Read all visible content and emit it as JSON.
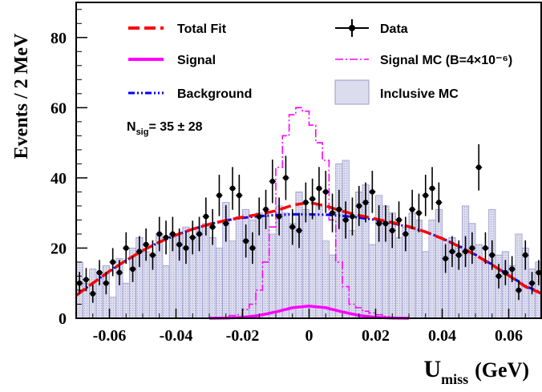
{
  "chart_data": {
    "type": "histogram-fit",
    "xlabel": "U",
    "xlabel_sub": "miss",
    "xlabel_unit": "(GeV)",
    "ylabel": "Events / 2 MeV",
    "xlim": [
      -0.07,
      0.07
    ],
    "ylim": [
      0,
      90
    ],
    "xticks": [
      -0.06,
      -0.04,
      -0.02,
      0,
      0.02,
      0.04,
      0.06
    ],
    "xtick_labels": [
      "-0.06",
      "-0.04",
      "-0.02",
      "0",
      "0.02",
      "0.04",
      "0.06"
    ],
    "yticks": [
      0,
      20,
      40,
      60,
      80
    ],
    "ytick_labels": [
      "0",
      "20",
      "40",
      "60",
      "80"
    ],
    "colors": {
      "total_fit": "#ff0000",
      "signal": "#ff00ff",
      "background": "#0000ff",
      "data": "#000000",
      "signal_mc": "#ff00ff",
      "inclusive_mc_line": "#9999cc",
      "inclusive_mc_fill": "#dcdcef"
    },
    "legend": {
      "placement": "top",
      "items": [
        {
          "key": "total_fit",
          "label": "Total Fit"
        },
        {
          "key": "data",
          "label": "Data"
        },
        {
          "key": "signal",
          "label": "Signal"
        },
        {
          "key": "signal_mc",
          "label": "Signal MC (B=4×10⁻⁶)"
        },
        {
          "key": "background",
          "label": "Background"
        },
        {
          "key": "inclusive_mc",
          "label": "Inclusive MC"
        }
      ]
    },
    "annotation": {
      "label": "N",
      "sub": "sig",
      "text": "= 35 ± 28"
    },
    "data_points": {
      "x": [
        -0.069,
        -0.067,
        -0.065,
        -0.063,
        -0.061,
        -0.059,
        -0.057,
        -0.055,
        -0.053,
        -0.051,
        -0.049,
        -0.047,
        -0.045,
        -0.043,
        -0.041,
        -0.039,
        -0.037,
        -0.035,
        -0.033,
        -0.031,
        -0.029,
        -0.027,
        -0.025,
        -0.023,
        -0.021,
        -0.019,
        -0.017,
        -0.015,
        -0.013,
        -0.011,
        -0.009,
        -0.007,
        -0.005,
        -0.003,
        -0.001,
        0.001,
        0.003,
        0.005,
        0.007,
        0.009,
        0.011,
        0.013,
        0.015,
        0.017,
        0.019,
        0.021,
        0.023,
        0.025,
        0.027,
        0.029,
        0.031,
        0.033,
        0.035,
        0.037,
        0.039,
        0.041,
        0.043,
        0.045,
        0.047,
        0.049,
        0.051,
        0.053,
        0.055,
        0.057,
        0.059,
        0.061,
        0.063,
        0.065,
        0.067,
        0.069
      ],
      "y": [
        10,
        11,
        7,
        13,
        10,
        16,
        13,
        20,
        14,
        19,
        21,
        18,
        24,
        23,
        24,
        21,
        20,
        23,
        24,
        29,
        26,
        35,
        27,
        37,
        35,
        22,
        20,
        29,
        31,
        39,
        29,
        40,
        26,
        25,
        33,
        34,
        37,
        36,
        30,
        31,
        28,
        29,
        32,
        33,
        36,
        27,
        27,
        25,
        28,
        24,
        31,
        30,
        35,
        37,
        33,
        17,
        19,
        18,
        19,
        20,
        43,
        20,
        18,
        12,
        13,
        14,
        8,
        18,
        10,
        13
      ],
      "yerr": [
        3.2,
        3.3,
        2.6,
        3.6,
        3.2,
        4.0,
        3.6,
        4.5,
        3.7,
        4.4,
        4.6,
        4.2,
        4.9,
        4.8,
        4.9,
        4.6,
        4.5,
        4.8,
        4.9,
        5.4,
        5.1,
        5.9,
        5.2,
        6.1,
        5.9,
        4.7,
        4.5,
        5.4,
        5.6,
        6.2,
        5.4,
        6.3,
        5.1,
        5.0,
        5.7,
        5.8,
        6.1,
        6.0,
        5.5,
        5.6,
        5.3,
        5.4,
        5.7,
        5.7,
        6.0,
        5.2,
        5.2,
        5.0,
        5.3,
        4.9,
        5.6,
        5.5,
        5.9,
        6.1,
        5.7,
        4.1,
        4.4,
        4.2,
        4.4,
        4.5,
        6.6,
        4.5,
        4.2,
        3.5,
        3.6,
        3.7,
        2.8,
        4.2,
        3.2,
        3.6
      ]
    },
    "inclusive_mc": {
      "x": [
        -0.069,
        -0.067,
        -0.065,
        -0.063,
        -0.061,
        -0.059,
        -0.057,
        -0.055,
        -0.053,
        -0.051,
        -0.049,
        -0.047,
        -0.045,
        -0.043,
        -0.041,
        -0.039,
        -0.037,
        -0.035,
        -0.033,
        -0.031,
        -0.029,
        -0.027,
        -0.025,
        -0.023,
        -0.021,
        -0.019,
        -0.017,
        -0.015,
        -0.013,
        -0.011,
        -0.009,
        -0.007,
        -0.005,
        -0.003,
        -0.001,
        0.001,
        0.003,
        0.005,
        0.007,
        0.009,
        0.011,
        0.013,
        0.015,
        0.017,
        0.019,
        0.021,
        0.023,
        0.025,
        0.027,
        0.029,
        0.031,
        0.033,
        0.035,
        0.037,
        0.039,
        0.041,
        0.043,
        0.045,
        0.047,
        0.049,
        0.051,
        0.053,
        0.055,
        0.057,
        0.059,
        0.061,
        0.063,
        0.065,
        0.067,
        0.069
      ],
      "y": [
        16,
        10,
        14,
        13,
        15,
        6,
        17,
        10,
        20,
        23,
        19,
        18,
        24,
        15,
        24,
        24,
        26,
        22,
        26,
        27,
        23,
        20,
        33,
        22,
        29,
        31,
        28,
        30,
        29,
        24,
        32,
        30,
        27,
        36,
        31,
        29,
        32,
        22,
        18,
        44,
        45,
        25,
        36,
        38,
        21,
        35,
        32,
        30,
        23,
        26,
        30,
        28,
        19,
        28,
        31,
        22,
        23,
        20,
        32,
        27,
        21,
        16,
        31,
        18,
        19,
        15,
        24,
        20,
        14,
        16
      ]
    },
    "signal_mc": {
      "x": [
        -0.027,
        -0.025,
        -0.023,
        -0.021,
        -0.019,
        -0.017,
        -0.015,
        -0.013,
        -0.011,
        -0.009,
        -0.007,
        -0.005,
        -0.003,
        -0.001,
        0.001,
        0.003,
        0.005,
        0.007,
        0.009,
        0.011,
        0.013,
        0.015,
        0.017,
        0.019,
        0.021,
        0.023,
        0.025,
        0.027
      ],
      "y": [
        0,
        0.3,
        0.8,
        1.0,
        2.5,
        4.0,
        8.0,
        16.0,
        26.0,
        43.0,
        52.0,
        58.0,
        60.0,
        59.0,
        55.0,
        50.0,
        45.0,
        28.0,
        16.0,
        9.0,
        4.0,
        3.0,
        2.0,
        1.5,
        1.0,
        0.5,
        0.3,
        0
      ]
    },
    "fit": {
      "total_fit_points": [
        [
          -0.07,
          6.5
        ],
        [
          -0.065,
          10.0
        ],
        [
          -0.06,
          13.4
        ],
        [
          -0.055,
          16.5
        ],
        [
          -0.05,
          19.3
        ],
        [
          -0.045,
          21.7
        ],
        [
          -0.04,
          23.7
        ],
        [
          -0.035,
          25.4
        ],
        [
          -0.03,
          26.8
        ],
        [
          -0.025,
          27.9
        ],
        [
          -0.02,
          28.8
        ],
        [
          -0.015,
          29.6
        ],
        [
          -0.01,
          30.6
        ],
        [
          -0.005,
          32.2
        ],
        [
          0.0,
          33.0
        ],
        [
          0.005,
          32.0
        ],
        [
          0.01,
          30.5
        ],
        [
          0.015,
          29.3
        ],
        [
          0.02,
          28.3
        ],
        [
          0.025,
          27.3
        ],
        [
          0.03,
          26.1
        ],
        [
          0.035,
          24.6
        ],
        [
          0.04,
          22.7
        ],
        [
          0.045,
          20.5
        ],
        [
          0.05,
          18.0
        ],
        [
          0.055,
          15.2
        ],
        [
          0.06,
          12.2
        ],
        [
          0.065,
          9.0
        ],
        [
          0.07,
          7.0
        ]
      ],
      "signal_points": [
        [
          -0.03,
          0.0
        ],
        [
          -0.025,
          0.05
        ],
        [
          -0.02,
          0.25
        ],
        [
          -0.015,
          0.8
        ],
        [
          -0.01,
          1.8
        ],
        [
          -0.005,
          3.0
        ],
        [
          0.0,
          3.5
        ],
        [
          0.005,
          3.0
        ],
        [
          0.01,
          1.8
        ],
        [
          0.015,
          0.8
        ],
        [
          0.02,
          0.25
        ],
        [
          0.025,
          0.05
        ],
        [
          0.03,
          0.0
        ]
      ],
      "background_points": [
        [
          -0.07,
          6.5
        ],
        [
          -0.065,
          10.0
        ],
        [
          -0.06,
          13.4
        ],
        [
          -0.055,
          16.5
        ],
        [
          -0.05,
          19.3
        ],
        [
          -0.045,
          21.7
        ],
        [
          -0.04,
          23.7
        ],
        [
          -0.035,
          25.4
        ],
        [
          -0.03,
          26.8
        ],
        [
          -0.025,
          27.9
        ],
        [
          -0.02,
          28.6
        ],
        [
          -0.015,
          29.1
        ],
        [
          -0.01,
          29.4
        ],
        [
          -0.005,
          29.6
        ],
        [
          0.0,
          29.6
        ],
        [
          0.005,
          29.5
        ],
        [
          0.01,
          29.2
        ],
        [
          0.015,
          28.7
        ],
        [
          0.02,
          28.0
        ],
        [
          0.025,
          27.1
        ],
        [
          0.03,
          26.0
        ],
        [
          0.035,
          24.6
        ],
        [
          0.04,
          22.8
        ],
        [
          0.045,
          20.6
        ],
        [
          0.05,
          18.1
        ],
        [
          0.055,
          15.3
        ],
        [
          0.06,
          12.3
        ],
        [
          0.065,
          9.2
        ],
        [
          0.07,
          7.2
        ]
      ]
    }
  }
}
